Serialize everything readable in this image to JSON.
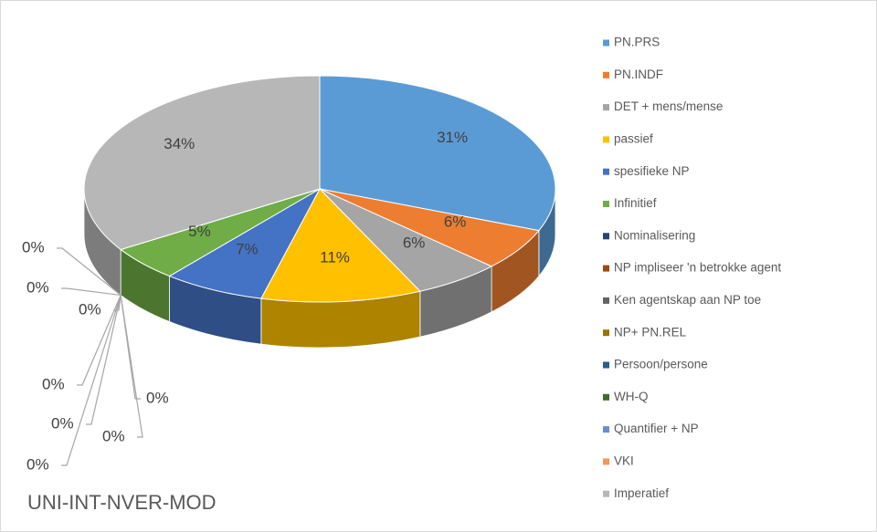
{
  "chart_data": {
    "type": "pie",
    "title": "UNI-INT-NVER-MOD",
    "categories": [
      "PN.PRS",
      "PN.INDF",
      "DET + mens/mense",
      "passief",
      "spesifieke NP",
      "Infinitief",
      "Nominalisering",
      "NP impliseer 'n betrokke agent",
      "Ken agentskap aan NP toe",
      "NP+ PN.REL",
      "Persoon/persone",
      "WH-Q",
      "Quantifier + NP",
      "VKI",
      "Imperatief"
    ],
    "values": [
      31,
      6,
      6,
      11,
      7,
      5,
      0,
      0,
      0,
      0,
      0,
      0,
      0,
      0,
      34
    ],
    "value_labels": [
      "31%",
      "6%",
      "6%",
      "11%",
      "7%",
      "5%",
      "0%",
      "0%",
      "0%",
      "0%",
      "0%",
      "0%",
      "0%",
      "0%",
      "34%"
    ],
    "colors": [
      "#5b9bd5",
      "#ed7d31",
      "#a5a5a5",
      "#ffc000",
      "#4472c4",
      "#70ad47",
      "#264478",
      "#9e480e",
      "#636363",
      "#997300",
      "#255e91",
      "#43682b",
      "#698ed0",
      "#f1975a",
      "#b7b7b7"
    ],
    "legend": "right"
  }
}
